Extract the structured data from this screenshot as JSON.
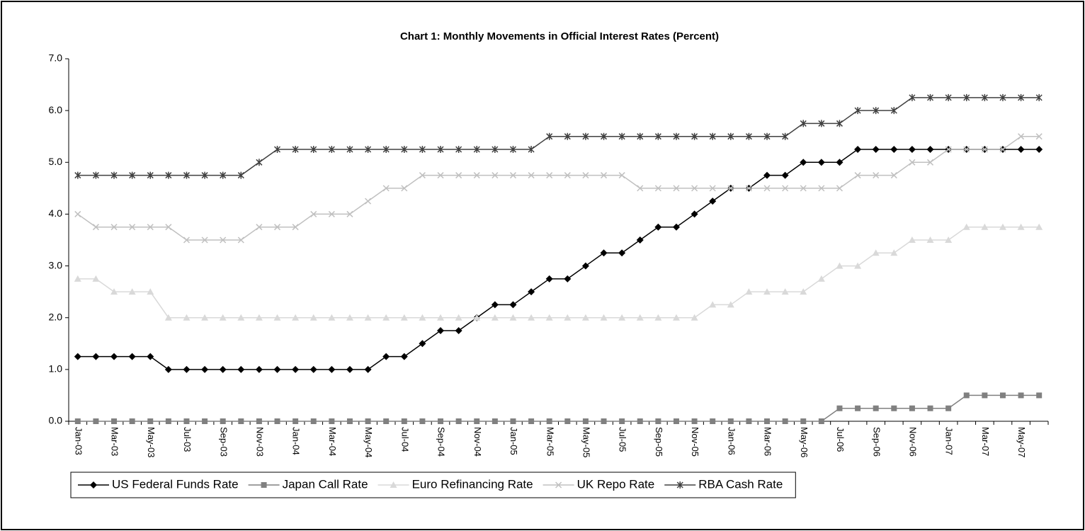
{
  "chart_data": {
    "type": "line",
    "title": "Chart 1: Monthly Movements in Official Interest Rates (Percent)",
    "categories": [
      "Jan-03",
      null,
      "Mar-03",
      null,
      "May-03",
      null,
      "Jul-03",
      null,
      "Sep-03",
      null,
      "Nov-03",
      null,
      "Jan-04",
      null,
      "Mar-04",
      null,
      "May-04",
      null,
      "Jul-04",
      null,
      "Sep-04",
      null,
      "Nov-04",
      null,
      "Jan-05",
      null,
      "Mar-05",
      null,
      "May-05",
      null,
      "Jul-05",
      null,
      "Sep-05",
      null,
      "Nov-05",
      null,
      "Jan-06",
      null,
      "Mar-06",
      null,
      "May-06",
      null,
      "Jul-06",
      null,
      "Sep-06",
      null,
      "Nov-06",
      null,
      "Jan-07",
      null,
      "Mar-07",
      null,
      "May-07",
      null
    ],
    "series": [
      {
        "name": "US Federal Funds Rate",
        "color": "#000000",
        "marker": "diamond",
        "values": [
          1.25,
          1.25,
          1.25,
          1.25,
          1.25,
          1,
          1,
          1,
          1,
          1,
          1,
          1,
          1,
          1,
          1,
          1,
          1,
          1.25,
          1.25,
          1.5,
          1.75,
          1.75,
          2,
          2.25,
          2.25,
          2.5,
          2.75,
          2.75,
          3,
          3.25,
          3.25,
          3.5,
          3.75,
          3.75,
          4,
          4.25,
          4.5,
          4.5,
          4.75,
          4.75,
          5,
          5,
          5,
          5.25,
          5.25,
          5.25,
          5.25,
          5.25,
          5.25,
          5.25,
          5.25,
          5.25,
          5.25,
          5.25
        ]
      },
      {
        "name": "Japan Call Rate",
        "color": "#808080",
        "marker": "square",
        "values": [
          0,
          0,
          0,
          0,
          0,
          0,
          0,
          0,
          0,
          0,
          0,
          0,
          0,
          0,
          0,
          0,
          0,
          0,
          0,
          0,
          0,
          0,
          0,
          0,
          0,
          0,
          0,
          0,
          0,
          0,
          0,
          0,
          0,
          0,
          0,
          0,
          0,
          0,
          0,
          0,
          0,
          0,
          0.25,
          0.25,
          0.25,
          0.25,
          0.25,
          0.25,
          0.25,
          0.5,
          0.5,
          0.5,
          0.5,
          0.5
        ]
      },
      {
        "name": "Euro Refinancing Rate",
        "color": "#d9d9d9",
        "marker": "triangle",
        "values": [
          2.75,
          2.75,
          2.5,
          2.5,
          2.5,
          2,
          2,
          2,
          2,
          2,
          2,
          2,
          2,
          2,
          2,
          2,
          2,
          2,
          2,
          2,
          2,
          2,
          2,
          2,
          2,
          2,
          2,
          2,
          2,
          2,
          2,
          2,
          2,
          2,
          2,
          2.25,
          2.25,
          2.5,
          2.5,
          2.5,
          2.5,
          2.75,
          3,
          3,
          3.25,
          3.25,
          3.5,
          3.5,
          3.5,
          3.75,
          3.75,
          3.75,
          3.75,
          3.75
        ]
      },
      {
        "name": "UK Repo Rate",
        "color": "#c0c0c0",
        "marker": "x",
        "values": [
          4,
          3.75,
          3.75,
          3.75,
          3.75,
          3.75,
          3.5,
          3.5,
          3.5,
          3.5,
          3.75,
          3.75,
          3.75,
          4,
          4,
          4,
          4.25,
          4.5,
          4.5,
          4.75,
          4.75,
          4.75,
          4.75,
          4.75,
          4.75,
          4.75,
          4.75,
          4.75,
          4.75,
          4.75,
          4.75,
          4.5,
          4.5,
          4.5,
          4.5,
          4.5,
          4.5,
          4.5,
          4.5,
          4.5,
          4.5,
          4.5,
          4.5,
          4.75,
          4.75,
          4.75,
          5,
          5,
          5.25,
          5.25,
          5.25,
          5.25,
          5.5,
          5.5
        ]
      },
      {
        "name": "RBA Cash Rate",
        "color": "#404040",
        "marker": "asterisk",
        "values": [
          4.75,
          4.75,
          4.75,
          4.75,
          4.75,
          4.75,
          4.75,
          4.75,
          4.75,
          4.75,
          5,
          5.25,
          5.25,
          5.25,
          5.25,
          5.25,
          5.25,
          5.25,
          5.25,
          5.25,
          5.25,
          5.25,
          5.25,
          5.25,
          5.25,
          5.25,
          5.5,
          5.5,
          5.5,
          5.5,
          5.5,
          5.5,
          5.5,
          5.5,
          5.5,
          5.5,
          5.5,
          5.5,
          5.5,
          5.5,
          5.75,
          5.75,
          5.75,
          6,
          6,
          6,
          6.25,
          6.25,
          6.25,
          6.25,
          6.25,
          6.25,
          6.25,
          6.25
        ]
      }
    ],
    "ylim": [
      0,
      7
    ],
    "yticks": [
      {
        "value": 0,
        "label": "0.0"
      },
      {
        "value": 1,
        "label": "1.0"
      },
      {
        "value": 2,
        "label": "2.0"
      },
      {
        "value": 3,
        "label": "3.0"
      },
      {
        "value": 4,
        "label": "4.0"
      },
      {
        "value": 5,
        "label": "5.0"
      },
      {
        "value": 6,
        "label": "6.0"
      },
      {
        "value": 7,
        "label": "7.0"
      }
    ],
    "legend": "bottom"
  }
}
